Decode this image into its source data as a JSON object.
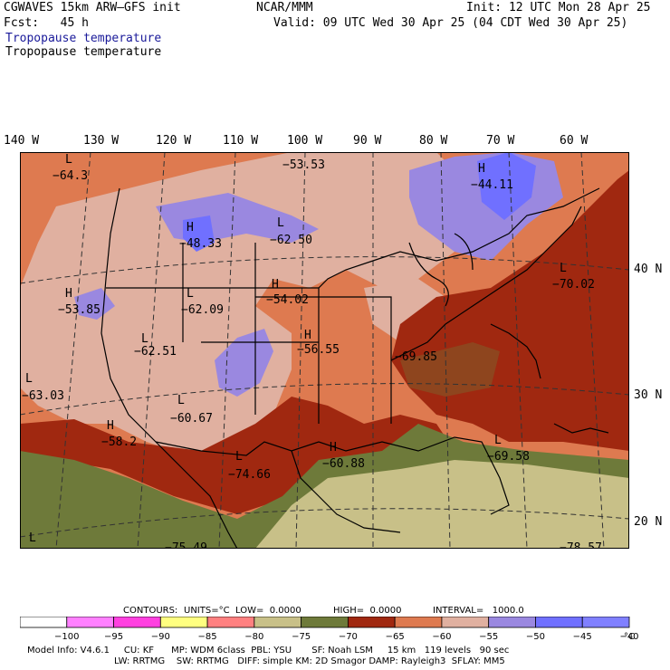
{
  "header": {
    "line1_left": "CGWAVES 15km ARW–GFS init",
    "line1_mid": "NCAR/MMM",
    "line1_right": "Init: 12 UTC Mon 28 Apr 25",
    "line2_left": "Fcst:   45 h",
    "line2_right": "Valid: 09 UTC Wed 30 Apr 25 (04 CDT Wed 30 Apr 25)",
    "field1": "Tropopause temperature",
    "field2": "Tropopause temperature"
  },
  "longitudes": [
    "140 W",
    "130 W",
    "120 W",
    "110 W",
    "100 W",
    "90 W",
    "80 W",
    "70 W",
    "60 W"
  ],
  "latitudes": [
    "40 N",
    "30 N",
    "20 N"
  ],
  "map_labels": [
    {
      "type": "L",
      "value": "−64.3"
    },
    {
      "type": "",
      "value": "−53.53"
    },
    {
      "type": "H",
      "value": "−44.11"
    },
    {
      "type": "H",
      "value": "−48.33"
    },
    {
      "type": "L",
      "value": "−62.50"
    },
    {
      "type": "L",
      "value": "−70.02"
    },
    {
      "type": "H",
      "value": "−53.85"
    },
    {
      "type": "L",
      "value": "−62.09"
    },
    {
      "type": "H",
      "value": "−54.02"
    },
    {
      "type": "L",
      "value": "−62.51"
    },
    {
      "type": "H",
      "value": "−56.55"
    },
    {
      "type": "",
      "value": "−69.85"
    },
    {
      "type": "L",
      "value": "−63.03"
    },
    {
      "type": "L",
      "value": "−60.67"
    },
    {
      "type": "H",
      "value": "−58.2"
    },
    {
      "type": "L",
      "value": "−74.66"
    },
    {
      "type": "H",
      "value": "−60.88"
    },
    {
      "type": "L",
      "value": "−69.58"
    },
    {
      "type": "L",
      "value": ""
    },
    {
      "type": "",
      "value": "−75.49"
    },
    {
      "type": "",
      "value": "−78.57"
    }
  ],
  "contours_line": {
    "label": "CONTOURS:",
    "units": "UNITS=°C",
    "low": "LOW=  0.0000",
    "high": "HIGH=  0.0000",
    "interval": "INTERVAL=   1000.0"
  },
  "colorbar": {
    "colors": [
      "#ffffff",
      "#ff80ff",
      "#ff40e0",
      "#ffff80",
      "#ff8080",
      "#c8c088",
      "#6e7a3a",
      "#a02810",
      "#de7a50",
      "#e0b0a0",
      "#9a88e0",
      "#7070ff",
      "#8080ff"
    ],
    "ticks": [
      "−100",
      "−95",
      "−90",
      "−85",
      "−80",
      "−75",
      "−70",
      "−65",
      "−60",
      "−55",
      "−50",
      "−45",
      "−40"
    ],
    "unit": "°C"
  },
  "model_info": {
    "line1": "Model Info: V4.6.1     CU: KF      MP: WDM 6class  PBL: YSU       SF: Noah LSM     15 km   119 levels   90 sec",
    "line2": "LW: RRTMG    SW: RRTMG   DIFF: simple KM: 2D Smagor DAMP: Rayleigh3  SFLAY: MM5"
  }
}
